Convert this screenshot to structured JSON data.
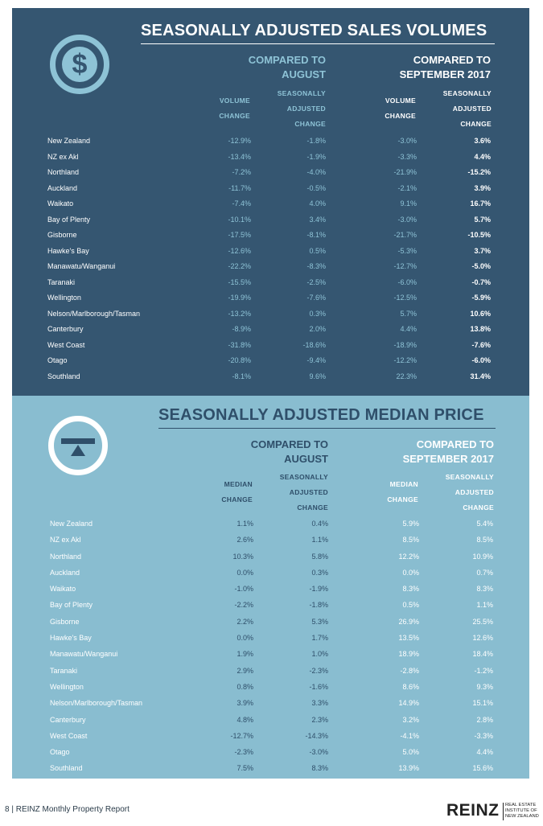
{
  "volumes": {
    "title": "SEASONALLY ADJUSTED SALES VOLUMES",
    "icon": "dollar-icon",
    "icon_glyph": "$",
    "group_1": "COMPARED TO\nAUGUST",
    "group_2": "COMPARED TO\nSEPTEMBER 2017",
    "col_1": "VOLUME\nCHANGE",
    "col_2": "SEASONALLY\nADJUSTED\nCHANGE",
    "col_3": "VOLUME\nCHANGE",
    "col_4": "SEASONALLY\nADJUSTED\nCHANGE",
    "rows": [
      {
        "region": "New Zealand",
        "v1": "-12.9%",
        "v2": "-1.8%",
        "v3": "-3.0%",
        "v4": "3.6%"
      },
      {
        "region": "NZ ex Akl",
        "v1": "-13.4%",
        "v2": "-1.9%",
        "v3": "-3.3%",
        "v4": "4.4%"
      },
      {
        "region": "Northland",
        "v1": "-7.2%",
        "v2": "-4.0%",
        "v3": "-21.9%",
        "v4": "-15.2%"
      },
      {
        "region": "Auckland",
        "v1": "-11.7%",
        "v2": "-0.5%",
        "v3": "-2.1%",
        "v4": "3.9%"
      },
      {
        "region": "Waikato",
        "v1": "-7.4%",
        "v2": "4.0%",
        "v3": "9.1%",
        "v4": "16.7%"
      },
      {
        "region": "Bay of Plenty",
        "v1": "-10.1%",
        "v2": "3.4%",
        "v3": "-3.0%",
        "v4": "5.7%"
      },
      {
        "region": "Gisborne",
        "v1": "-17.5%",
        "v2": "-8.1%",
        "v3": "-21.7%",
        "v4": "-10.5%"
      },
      {
        "region": "Hawke's Bay",
        "v1": "-12.6%",
        "v2": "0.5%",
        "v3": "-5.3%",
        "v4": "3.7%"
      },
      {
        "region": "Manawatu/Wanganui",
        "v1": "-22.2%",
        "v2": "-8.3%",
        "v3": "-12.7%",
        "v4": "-5.0%"
      },
      {
        "region": "Taranaki",
        "v1": "-15.5%",
        "v2": "-2.5%",
        "v3": "-6.0%",
        "v4": "-0.7%"
      },
      {
        "region": "Wellington",
        "v1": "-19.9%",
        "v2": "-7.6%",
        "v3": "-12.5%",
        "v4": "-5.9%"
      },
      {
        "region": "Nelson/Marlborough/Tasman",
        "v1": "-13.2%",
        "v2": "0.3%",
        "v3": "5.7%",
        "v4": "10.6%"
      },
      {
        "region": "Canterbury",
        "v1": "-8.9%",
        "v2": "2.0%",
        "v3": "4.4%",
        "v4": "13.8%"
      },
      {
        "region": "West Coast",
        "v1": "-31.8%",
        "v2": "-18.6%",
        "v3": "-18.9%",
        "v4": "-7.6%"
      },
      {
        "region": "Otago",
        "v1": "-20.8%",
        "v2": "-9.4%",
        "v3": "-12.2%",
        "v4": "-6.0%"
      },
      {
        "region": "Southland",
        "v1": "-8.1%",
        "v2": "9.6%",
        "v3": "22.3%",
        "v4": "31.4%"
      }
    ]
  },
  "prices": {
    "title": "SEASONALLY ADJUSTED MEDIAN PRICE",
    "icon": "scale-balance-icon",
    "group_1": "COMPARED TO\nAUGUST",
    "group_2": "COMPARED TO\nSEPTEMBER 2017",
    "col_1": "MEDIAN\nCHANGE",
    "col_2": "SEASONALLY\nADJUSTED\nCHANGE",
    "col_3": "MEDIAN\nCHANGE",
    "col_4": "SEASONALLY\nADJUSTED\nCHANGE",
    "rows": [
      {
        "region": "New Zealand",
        "v1": "1.1%",
        "v2": "0.4%",
        "v3": "5.9%",
        "v4": "5.4%"
      },
      {
        "region": "NZ ex Akl",
        "v1": "2.6%",
        "v2": "1.1%",
        "v3": "8.5%",
        "v4": "8.5%"
      },
      {
        "region": "Northland",
        "v1": "10.3%",
        "v2": "5.8%",
        "v3": "12.2%",
        "v4": "10.9%"
      },
      {
        "region": "Auckland",
        "v1": "0.0%",
        "v2": "0.3%",
        "v3": "0.0%",
        "v4": "0.7%"
      },
      {
        "region": "Waikato",
        "v1": "-1.0%",
        "v2": "-1.9%",
        "v3": "8.3%",
        "v4": "8.3%"
      },
      {
        "region": "Bay of Plenty",
        "v1": "-2.2%",
        "v2": "-1.8%",
        "v3": "0.5%",
        "v4": "1.1%"
      },
      {
        "region": "Gisborne",
        "v1": "2.2%",
        "v2": "5.3%",
        "v3": "26.9%",
        "v4": "25.5%"
      },
      {
        "region": "Hawke's Bay",
        "v1": "0.0%",
        "v2": "1.7%",
        "v3": "13.5%",
        "v4": "12.6%"
      },
      {
        "region": "Manawatu/Wanganui",
        "v1": "1.9%",
        "v2": "1.0%",
        "v3": "18.9%",
        "v4": "18.4%"
      },
      {
        "region": "Taranaki",
        "v1": "2.9%",
        "v2": "-2.3%",
        "v3": "-2.8%",
        "v4": "-1.2%"
      },
      {
        "region": "Wellington",
        "v1": "0.8%",
        "v2": "-1.6%",
        "v3": "8.6%",
        "v4": "9.3%"
      },
      {
        "region": "Nelson/Marlborough/Tasman",
        "v1": "3.9%",
        "v2": "3.3%",
        "v3": "14.9%",
        "v4": "15.1%"
      },
      {
        "region": "Canterbury",
        "v1": "4.8%",
        "v2": "2.3%",
        "v3": "3.2%",
        "v4": "2.8%"
      },
      {
        "region": "West Coast",
        "v1": "-12.7%",
        "v2": "-14.3%",
        "v3": "-4.1%",
        "v4": "-3.3%"
      },
      {
        "region": "Otago",
        "v1": "-2.3%",
        "v2": "-3.0%",
        "v3": "5.0%",
        "v4": "4.4%"
      },
      {
        "region": "Southland",
        "v1": "7.5%",
        "v2": "8.3%",
        "v3": "13.9%",
        "v4": "15.6%"
      }
    ]
  },
  "footer": {
    "page_text": "8  |  REINZ Monthly Property Report",
    "logo_word": "REINZ",
    "logo_small": "REAL ESTATE\nINSTITUTE OF\nNEW ZEALAND"
  },
  "colors": {
    "dark_panel": "#355671",
    "light_panel": "#89bdd0",
    "accent": "#8ec3d6"
  }
}
